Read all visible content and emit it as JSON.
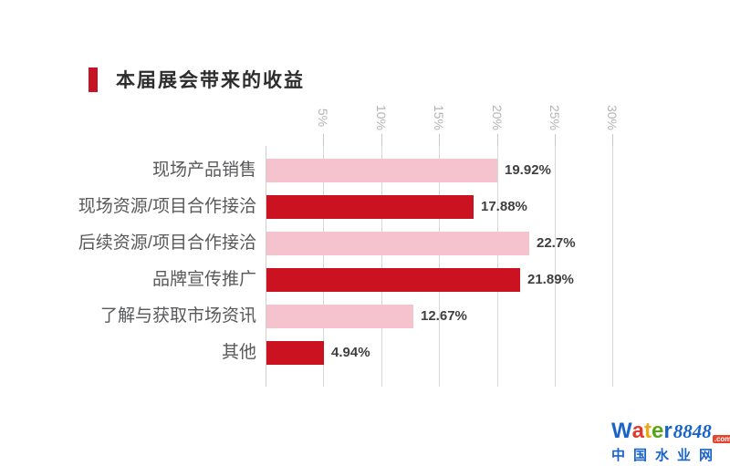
{
  "title": "本届展会带来的收益",
  "chart_data": {
    "type": "bar",
    "orientation": "horizontal",
    "title": "本届展会带来的收益",
    "categories": [
      "现场产品销售",
      "现场资源/项目合作接洽",
      "后续资源/项目合作接洽",
      "品牌宣传推广",
      "了解与获取市场资讯",
      "其他"
    ],
    "values": [
      19.92,
      17.88,
      22.7,
      21.89,
      12.67,
      4.94
    ],
    "value_labels": [
      "19.92%",
      "17.88%",
      "22.7%",
      "21.89%",
      "12.67%",
      "4.94%"
    ],
    "x_ticks": [
      "5%",
      "10%",
      "15%",
      "20%",
      "25%",
      "30%"
    ],
    "x_tick_values": [
      5,
      10,
      15,
      20,
      25,
      30
    ],
    "xlim": [
      0,
      30
    ],
    "grid": true,
    "legend": "none",
    "bar_color_pattern": "alternating"
  },
  "colors": {
    "bar_pink": "#f4c3ce",
    "bar_red": "#cb1220",
    "title_marker": "#c41425",
    "grid": "#d8d8d8",
    "tick_label": "#b5b2b2",
    "category_label": "#58595b",
    "value_label": "#3f3f41"
  },
  "branding": {
    "water_letters": [
      {
        "char": "W",
        "color": "#1a63c9"
      },
      {
        "char": "a",
        "color": "#e03a2f"
      },
      {
        "char": "t",
        "color": "#f0a818"
      },
      {
        "char": "e",
        "color": "#58a618"
      },
      {
        "char": "r",
        "color": "#1a63c9"
      }
    ],
    "numbers": "8848",
    "tld": ".com",
    "site_name": "中国水业网"
  }
}
